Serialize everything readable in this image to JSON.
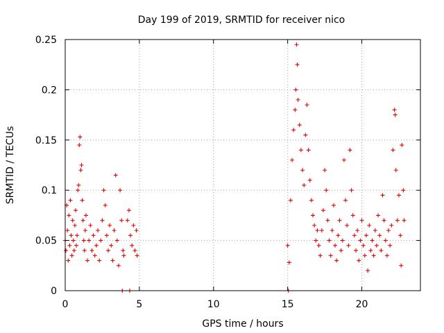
{
  "chart_data": {
    "type": "scatter",
    "title": "Day 199 of 2019, SRMTID for receiver nico",
    "xlabel": "GPS time / hours",
    "ylabel": "SRMTID / TECUs",
    "xlim": [
      0,
      23.95
    ],
    "ylim": [
      0,
      0.25
    ],
    "x_ticks": [
      0,
      5,
      10,
      15,
      20
    ],
    "x_tick_labels": [
      "0",
      "5",
      "10",
      "15",
      "20"
    ],
    "y_ticks": [
      0,
      0.05,
      0.1,
      0.15,
      0.2,
      0.25
    ],
    "y_tick_labels": [
      "0",
      "0.05",
      "0.1",
      "0.15",
      "0.2",
      "0.25"
    ],
    "grid": true,
    "marker": "plus",
    "color": "#e00000",
    "series": [
      {
        "points": [
          [
            0.0,
            0.05
          ],
          [
            0.05,
            0.04
          ],
          [
            0.1,
            0.085
          ],
          [
            0.15,
            0.06
          ],
          [
            0.2,
            0.03
          ],
          [
            0.25,
            0.075
          ],
          [
            0.3,
            0.045
          ],
          [
            0.35,
            0.09
          ],
          [
            0.4,
            0.055
          ],
          [
            0.45,
            0.035
          ],
          [
            0.5,
            0.07
          ],
          [
            0.55,
            0.05
          ],
          [
            0.6,
            0.04
          ],
          [
            0.65,
            0.065
          ],
          [
            0.7,
            0.08
          ],
          [
            0.75,
            0.045
          ],
          [
            0.8,
            0.055
          ],
          [
            0.85,
            0.1
          ],
          [
            0.9,
            0.105
          ],
          [
            0.95,
            0.145
          ],
          [
            1.0,
            0.153
          ],
          [
            1.05,
            0.12
          ],
          [
            1.1,
            0.125
          ],
          [
            1.15,
            0.09
          ],
          [
            1.2,
            0.07
          ],
          [
            1.25,
            0.05
          ],
          [
            1.3,
            0.04
          ],
          [
            1.35,
            0.06
          ],
          [
            1.4,
            0.075
          ],
          [
            1.5,
            0.03
          ],
          [
            1.6,
            0.05
          ],
          [
            1.7,
            0.065
          ],
          [
            1.8,
            0.04
          ],
          [
            1.9,
            0.055
          ],
          [
            2.0,
            0.035
          ],
          [
            2.1,
            0.045
          ],
          [
            2.2,
            0.06
          ],
          [
            2.3,
            0.03
          ],
          [
            2.4,
            0.05
          ],
          [
            2.5,
            0.07
          ],
          [
            2.6,
            0.1
          ],
          [
            2.7,
            0.085
          ],
          [
            2.8,
            0.055
          ],
          [
            2.9,
            0.04
          ],
          [
            3.0,
            0.065
          ],
          [
            3.1,
            0.045
          ],
          [
            3.2,
            0.03
          ],
          [
            3.3,
            0.06
          ],
          [
            3.4,
            0.115
          ],
          [
            3.5,
            0.05
          ],
          [
            3.6,
            0.025
          ],
          [
            3.7,
            0.1
          ],
          [
            3.8,
            0.07
          ],
          [
            3.9,
            0.04
          ],
          [
            3.95,
            0.035
          ],
          [
            4.2,
            0.07
          ],
          [
            4.3,
            0.08
          ],
          [
            4.4,
            0.055
          ],
          [
            4.5,
            0.045
          ],
          [
            4.6,
            0.065
          ],
          [
            4.7,
            0.04
          ],
          [
            4.8,
            0.06
          ],
          [
            4.85,
            0.035
          ],
          [
            15.0,
            0.045
          ],
          [
            15.1,
            0.028
          ],
          [
            15.2,
            0.09
          ],
          [
            15.3,
            0.13
          ],
          [
            15.4,
            0.16
          ],
          [
            15.5,
            0.18
          ],
          [
            15.55,
            0.2
          ],
          [
            15.6,
            0.245
          ],
          [
            15.65,
            0.225
          ],
          [
            15.7,
            0.19
          ],
          [
            15.8,
            0.165
          ],
          [
            15.9,
            0.14
          ],
          [
            16.0,
            0.12
          ],
          [
            16.1,
            0.105
          ],
          [
            16.2,
            0.155
          ],
          [
            16.3,
            0.185
          ],
          [
            16.4,
            0.14
          ],
          [
            16.5,
            0.11
          ],
          [
            16.6,
            0.09
          ],
          [
            16.7,
            0.075
          ],
          [
            16.8,
            0.065
          ],
          [
            16.9,
            0.05
          ],
          [
            17.0,
            0.06
          ],
          [
            17.1,
            0.045
          ],
          [
            17.2,
            0.035
          ],
          [
            17.3,
            0.06
          ],
          [
            17.4,
            0.08
          ],
          [
            17.5,
            0.12
          ],
          [
            17.6,
            0.1
          ],
          [
            17.7,
            0.07
          ],
          [
            17.8,
            0.05
          ],
          [
            17.9,
            0.035
          ],
          [
            18.0,
            0.06
          ],
          [
            18.1,
            0.085
          ],
          [
            18.2,
            0.045
          ],
          [
            18.3,
            0.03
          ],
          [
            18.4,
            0.055
          ],
          [
            18.5,
            0.07
          ],
          [
            18.6,
            0.04
          ],
          [
            18.7,
            0.05
          ],
          [
            18.8,
            0.13
          ],
          [
            18.9,
            0.09
          ],
          [
            19.0,
            0.065
          ],
          [
            19.1,
            0.045
          ],
          [
            19.2,
            0.14
          ],
          [
            19.3,
            0.1
          ],
          [
            19.4,
            0.075
          ],
          [
            19.5,
            0.055
          ],
          [
            19.6,
            0.04
          ],
          [
            19.7,
            0.06
          ],
          [
            19.8,
            0.03
          ],
          [
            19.9,
            0.05
          ],
          [
            20.0,
            0.07
          ],
          [
            20.1,
            0.045
          ],
          [
            20.2,
            0.035
          ],
          [
            20.3,
            0.055
          ],
          [
            20.4,
            0.02
          ],
          [
            20.5,
            0.065
          ],
          [
            20.6,
            0.04
          ],
          [
            20.7,
            0.05
          ],
          [
            20.8,
            0.035
          ],
          [
            20.9,
            0.06
          ],
          [
            21.0,
            0.045
          ],
          [
            21.1,
            0.075
          ],
          [
            21.2,
            0.055
          ],
          [
            21.3,
            0.04
          ],
          [
            21.4,
            0.095
          ],
          [
            21.5,
            0.07
          ],
          [
            21.6,
            0.05
          ],
          [
            21.7,
            0.035
          ],
          [
            21.8,
            0.06
          ],
          [
            21.9,
            0.045
          ],
          [
            22.0,
            0.065
          ],
          [
            22.1,
            0.14
          ],
          [
            22.2,
            0.18
          ],
          [
            22.25,
            0.175
          ],
          [
            22.3,
            0.12
          ],
          [
            22.4,
            0.07
          ],
          [
            22.5,
            0.095
          ],
          [
            22.6,
            0.055
          ],
          [
            22.65,
            0.025
          ],
          [
            22.7,
            0.145
          ],
          [
            22.8,
            0.1
          ],
          [
            22.85,
            0.07
          ],
          [
            3.85,
            0.0
          ],
          [
            4.35,
            0.0
          ],
          [
            15.05,
            0.0
          ]
        ]
      }
    ]
  }
}
